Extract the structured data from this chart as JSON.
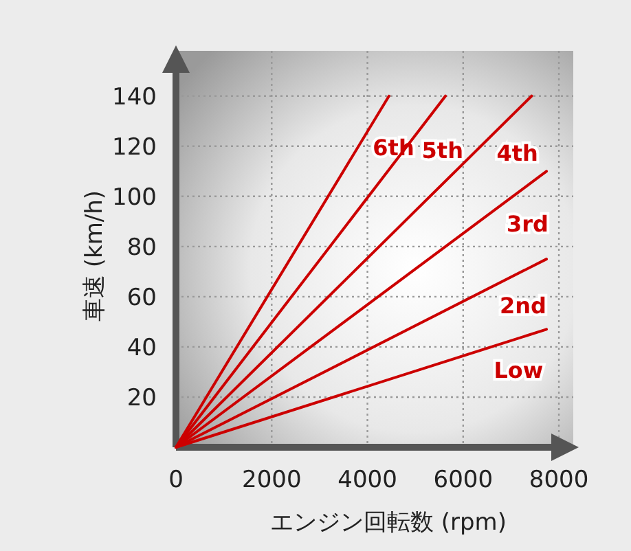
{
  "chart_data": {
    "type": "line",
    "xlabel": "エンジン回転数 (rpm)",
    "ylabel": "車速 (km/h)",
    "xlim": [
      0,
      8300
    ],
    "ylim": [
      0,
      158
    ],
    "xticks": [
      0,
      2000,
      4000,
      6000,
      8000
    ],
    "yticks": [
      20,
      40,
      60,
      80,
      100,
      120,
      140
    ],
    "grid": true,
    "marker": "none",
    "line_style": "solid",
    "series": [
      {
        "name": "6th",
        "color": "#cc0000",
        "x": [
          0,
          4450
        ],
        "values": [
          0,
          140
        ]
      },
      {
        "name": "5th",
        "color": "#cc0000",
        "x": [
          0,
          5630
        ],
        "values": [
          0,
          140
        ]
      },
      {
        "name": "4th",
        "color": "#cc0000",
        "x": [
          0,
          7430
        ],
        "values": [
          0,
          140
        ]
      },
      {
        "name": "3rd",
        "color": "#cc0000",
        "x": [
          0,
          7740
        ],
        "values": [
          0,
          110
        ]
      },
      {
        "name": "2nd",
        "color": "#cc0000",
        "x": [
          0,
          7740
        ],
        "values": [
          0,
          75
        ]
      },
      {
        "name": "Low",
        "color": "#cc0000",
        "x": [
          0,
          7740
        ],
        "values": [
          0,
          47
        ]
      }
    ]
  }
}
